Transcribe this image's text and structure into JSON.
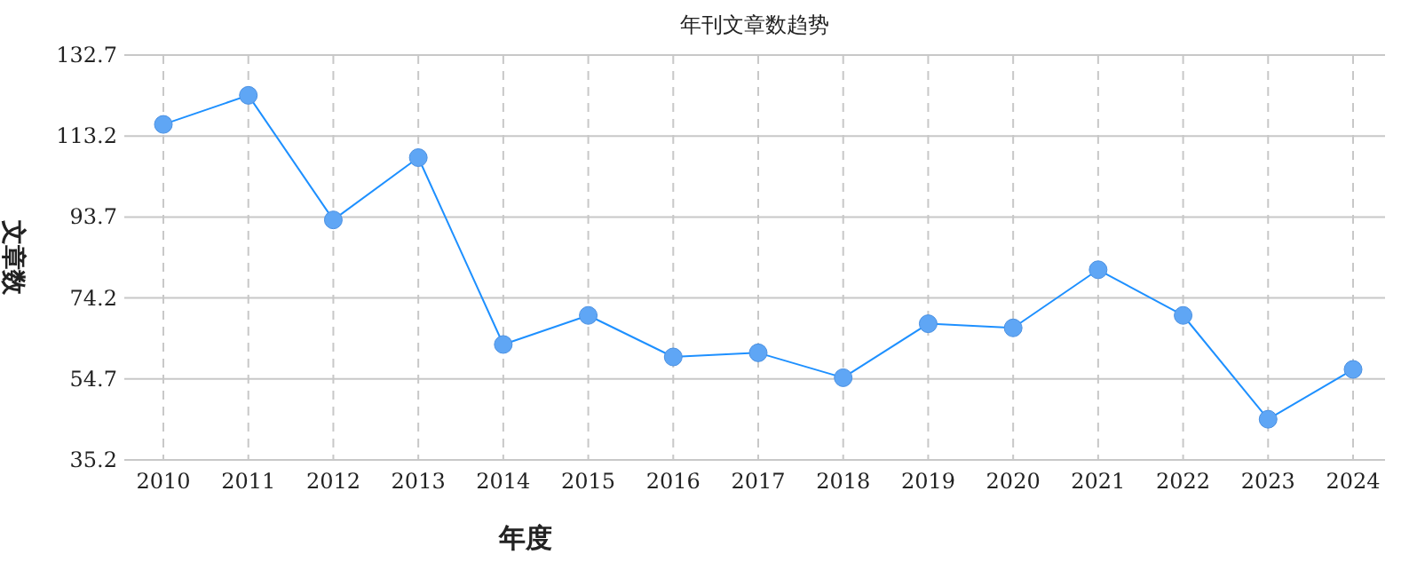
{
  "chart_data": {
    "type": "line",
    "title": "年刊文章数趋势",
    "xlabel": "年度",
    "ylabel": "文章数",
    "categories": [
      "2010",
      "2011",
      "2012",
      "2013",
      "2014",
      "2015",
      "2016",
      "2017",
      "2018",
      "2019",
      "2020",
      "2021",
      "2022",
      "2023",
      "2024"
    ],
    "series": [
      {
        "color": "#1e90ff",
        "values": [
          116,
          123,
          93,
          108,
          63,
          70,
          60,
          61,
          55,
          68,
          67,
          81,
          70,
          45,
          57
        ]
      }
    ],
    "ylim": [
      35.2,
      132.7
    ],
    "yticks": [
      35.2,
      54.7,
      74.2,
      93.7,
      113.2,
      132.7
    ],
    "grid": true,
    "marker": "circle",
    "line_style": "solid"
  }
}
